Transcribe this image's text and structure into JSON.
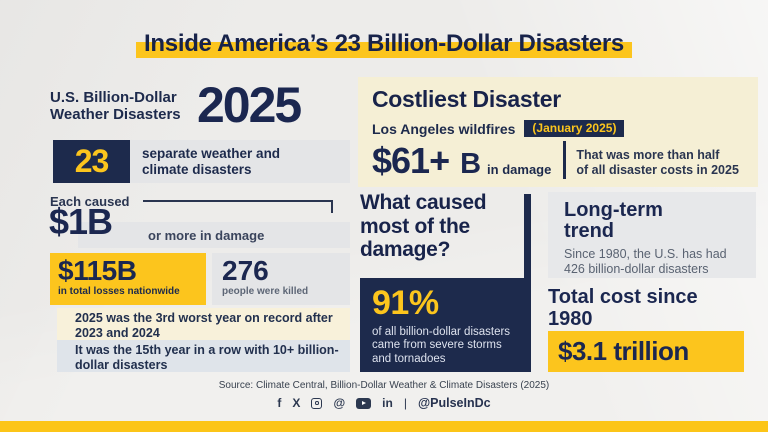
{
  "page": {
    "title": "Inside America’s 23 Billion-Dollar Disasters"
  },
  "colors": {
    "navy": "#1d2a4c",
    "yellow": "#fcc51d",
    "cream": "#f5efd5",
    "paper": "#f1f0ee"
  },
  "left": {
    "label_line1": "U.S. Billion-Dollar",
    "label_line2": "Weather Disasters",
    "year": "2025",
    "count": "23",
    "count_caption_line1": "separate weather and",
    "count_caption_line2": "climate disasters",
    "each_caused": "Each caused",
    "one_b_value": "$1B",
    "one_b_caption": "or more in damage",
    "losses_value": "$115B",
    "losses_caption": "in total losses nationwide",
    "killed_value": "276",
    "killed_caption": "people were killed",
    "note1": "2025 was the 3rd worst year on record after 2023 and 2024",
    "note2": "It was the 15th year in a row with 10+ billion-dollar disasters"
  },
  "costliest": {
    "heading": "Costliest Disaster",
    "event": "Los Angeles wildfires",
    "date_chip": "(January 2025)",
    "amount": "$61+",
    "amount_unit": "B",
    "amount_caption": "in damage",
    "note_line1": "That was more than half",
    "note_line2": "of all disaster costs in 2025"
  },
  "cause": {
    "heading": "What caused most of the damage?",
    "percent": "91%",
    "caption_line1": "of all billion-dollar disasters",
    "caption_line2": "came from severe storms",
    "caption_line3": "and tornadoes"
  },
  "trend": {
    "heading": "Long-term trend",
    "body": "Since 1980, the U.S. has had 426 billion-dollar disasters",
    "total_heading": "Total cost since 1980",
    "total_value": "$3.1 trillion"
  },
  "footer": {
    "source": "Source: Climate Central, Billion-Dollar Weather & Climate Disasters (2025)",
    "separator": "|",
    "handle": "@PulseInDc",
    "icons": {
      "facebook": "f",
      "x": "X",
      "threads": "@",
      "linkedin": "in"
    }
  }
}
